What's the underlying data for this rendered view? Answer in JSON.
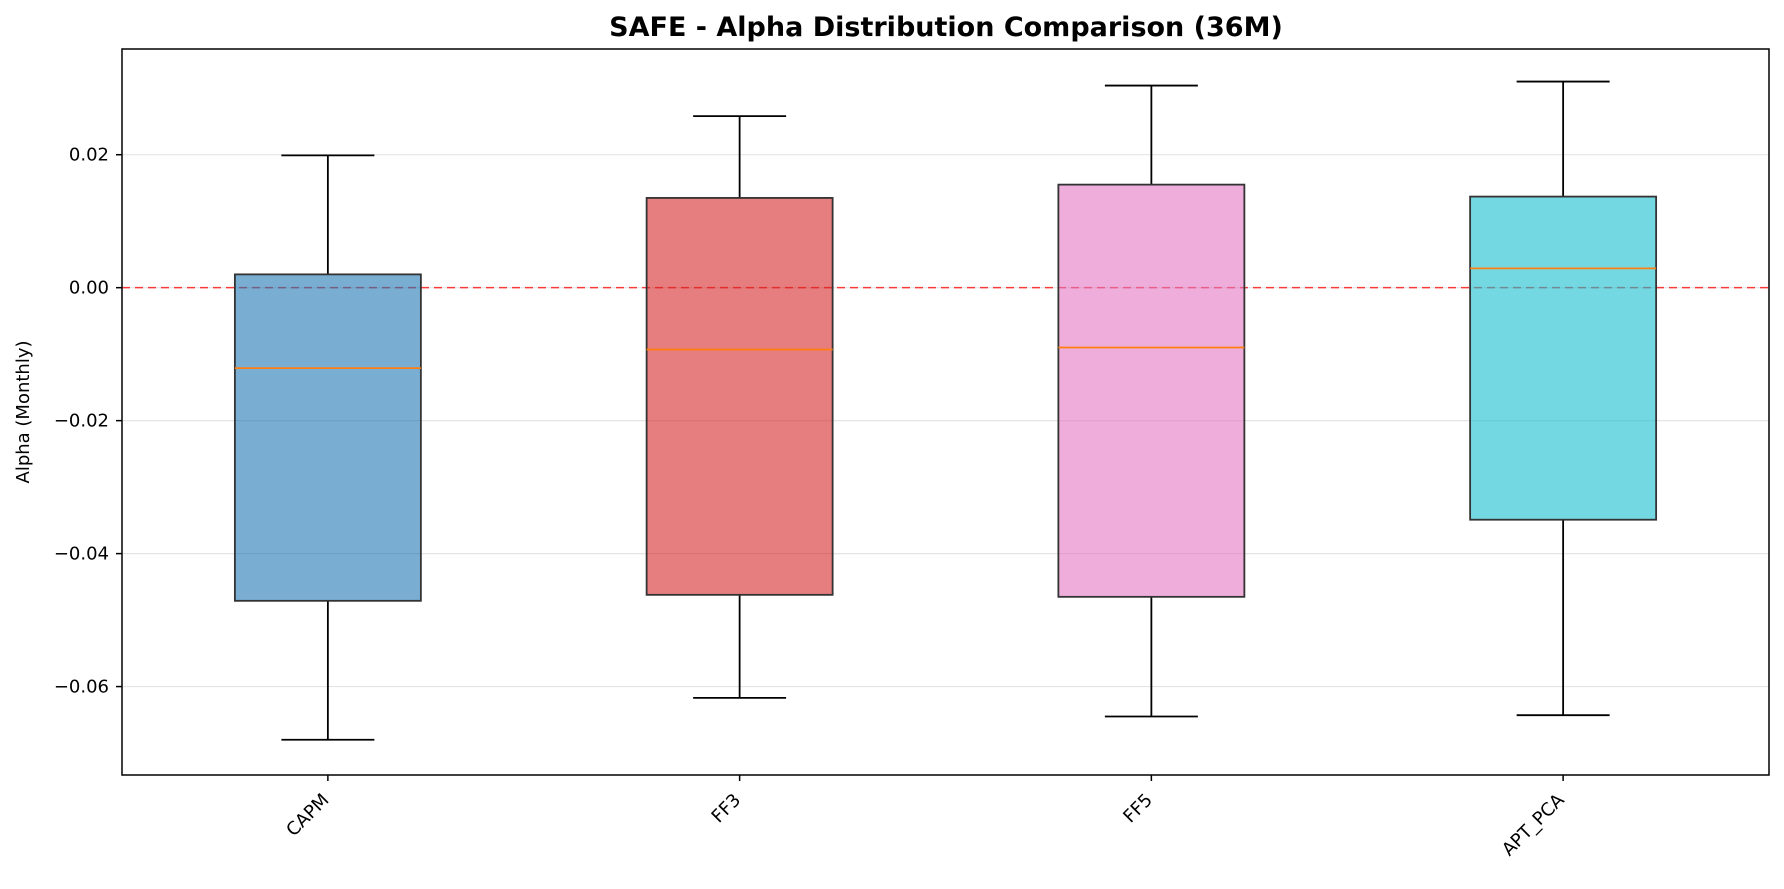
{
  "chart_data": {
    "type": "box",
    "title": "SAFE - Alpha Distribution Comparison (36M)",
    "xlabel": "",
    "ylabel": "Alpha (Monthly)",
    "ylim": [
      -0.0733,
      0.0359
    ],
    "yticks": [
      0.02,
      0.0,
      -0.02,
      -0.04,
      -0.06
    ],
    "ytick_labels": [
      "0.02",
      "0.00",
      "−0.02",
      "−0.04",
      "−0.06"
    ],
    "grid": "horizontal",
    "reference_line": {
      "y": 0.0,
      "color": "#ff0000",
      "style": "dashed"
    },
    "categories": [
      "CAPM",
      "FF3",
      "FF5",
      "APT_PCA"
    ],
    "boxes": [
      {
        "name": "CAPM",
        "whisker_low": -0.068,
        "q1": -0.0471,
        "median": -0.0121,
        "q3": 0.002,
        "whisker_high": 0.0199,
        "color": "#1f77b4"
      },
      {
        "name": "FF3",
        "whisker_low": -0.0617,
        "q1": -0.0462,
        "median": -0.0093,
        "q3": 0.0135,
        "whisker_high": 0.0258,
        "color": "#d62728"
      },
      {
        "name": "FF5",
        "whisker_low": -0.0645,
        "q1": -0.0465,
        "median": -0.009,
        "q3": 0.0155,
        "whisker_high": 0.0304,
        "color": "#e377c2"
      },
      {
        "name": "APT_PCA",
        "whisker_low": -0.0643,
        "q1": -0.0349,
        "median": 0.0029,
        "q3": 0.0137,
        "whisker_high": 0.031,
        "color": "#17becf"
      }
    ]
  }
}
